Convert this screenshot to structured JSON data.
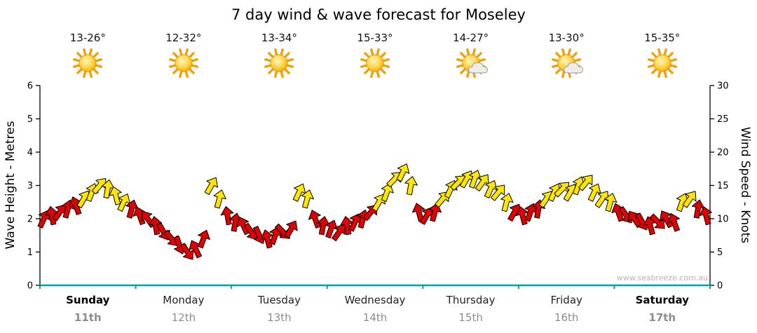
{
  "title": "7 day wind & wave forecast for Moseley",
  "watermark": "www.seabreeze.com.au",
  "colors": {
    "axis": "#000000",
    "baseline": "#00a3a3",
    "date_text": "#8c8c8c",
    "light_wind_arrow": "#e00000",
    "moderate_wind_arrow": "#ffe600",
    "sun": "#f5a800",
    "cloud": "#ededed"
  },
  "days": [
    {
      "name": "Sunday",
      "date": "11th",
      "temp": "13-26°",
      "icon": "sun",
      "weekend": true
    },
    {
      "name": "Monday",
      "date": "12th",
      "temp": "12-32°",
      "icon": "sun",
      "weekend": false
    },
    {
      "name": "Tuesday",
      "date": "13th",
      "temp": "13-34°",
      "icon": "sun",
      "weekend": false
    },
    {
      "name": "Wednesday",
      "date": "14th",
      "temp": "15-33°",
      "icon": "sun",
      "weekend": false
    },
    {
      "name": "Thursday",
      "date": "15th",
      "temp": "14-27°",
      "icon": "sun-cloud",
      "weekend": false
    },
    {
      "name": "Friday",
      "date": "16th",
      "temp": "13-30°",
      "icon": "sun-cloud",
      "weekend": false
    },
    {
      "name": "Saturday",
      "date": "17th",
      "temp": "15-35°",
      "icon": "sun",
      "weekend": true
    }
  ],
  "chart_data": {
    "type": "wind-arrows",
    "title": "7 day wind & wave forecast for Moseley",
    "x_days": [
      "Sunday",
      "Monday",
      "Tuesday",
      "Wednesday",
      "Thursday",
      "Friday",
      "Saturday"
    ],
    "points_per_day": 12,
    "left_axis": {
      "label": "Wave Height - Metres",
      "range": [
        0,
        6
      ],
      "ticks": [
        0,
        1,
        2,
        3,
        4,
        5,
        6
      ]
    },
    "right_axis": {
      "label": "Wind Speed - Knots",
      "range": [
        0,
        30
      ],
      "ticks": [
        0,
        5,
        10,
        15,
        20,
        25,
        30
      ]
    },
    "grid": false,
    "speed_color_rule": {
      "threshold_knots": 12.5,
      "below_color": "#e00000",
      "above_color": "#ffe600",
      "note": "red arrows = lighter winds, yellow arrows = moderate winds"
    },
    "wind_speed_knots": [
      10,
      10.5,
      11,
      11.5,
      12,
      13,
      14,
      15,
      14.5,
      13.5,
      12.5,
      11.5,
      10.5,
      10,
      9,
      8,
      7,
      6,
      5,
      5.5,
      7,
      15,
      13,
      10.5,
      9.5,
      9,
      8,
      7.5,
      7,
      7.5,
      8,
      8.5,
      14,
      13,
      10,
      9,
      8.5,
      8,
      9,
      9.5,
      10,
      11,
      12.5,
      14,
      16,
      17,
      15,
      11,
      10.5,
      11,
      13,
      14.5,
      15.5,
      16,
      16,
      15.5,
      14.5,
      14,
      12.5,
      11,
      10.5,
      11,
      11.5,
      13,
      14,
      14.5,
      14,
      15,
      15.5,
      14,
      13,
      12.5,
      11,
      10.5,
      10,
      9.5,
      9,
      9.5,
      10,
      9.5,
      12.5,
      13,
      11.5,
      10.5
    ],
    "wind_direction_deg": [
      25,
      -10,
      35,
      15,
      -20,
      30,
      20,
      40,
      10,
      -15,
      25,
      15,
      -20,
      -35,
      -10,
      150,
      140,
      160,
      145,
      -25,
      20,
      30,
      15,
      -10,
      10,
      -25,
      145,
      155,
      -15,
      20,
      135,
      30,
      25,
      15,
      -20,
      10,
      20,
      35,
      -10,
      25,
      15,
      40,
      30,
      20,
      45,
      25,
      10,
      -15,
      30,
      15,
      40,
      25,
      45,
      30,
      20,
      35,
      25,
      40,
      15,
      30,
      -15,
      20,
      10,
      35,
      25,
      45,
      30,
      20,
      40,
      25,
      35,
      15,
      -20,
      145,
      -35,
      150,
      -15,
      135,
      -30,
      -20,
      20,
      35,
      10,
      -15
    ]
  }
}
